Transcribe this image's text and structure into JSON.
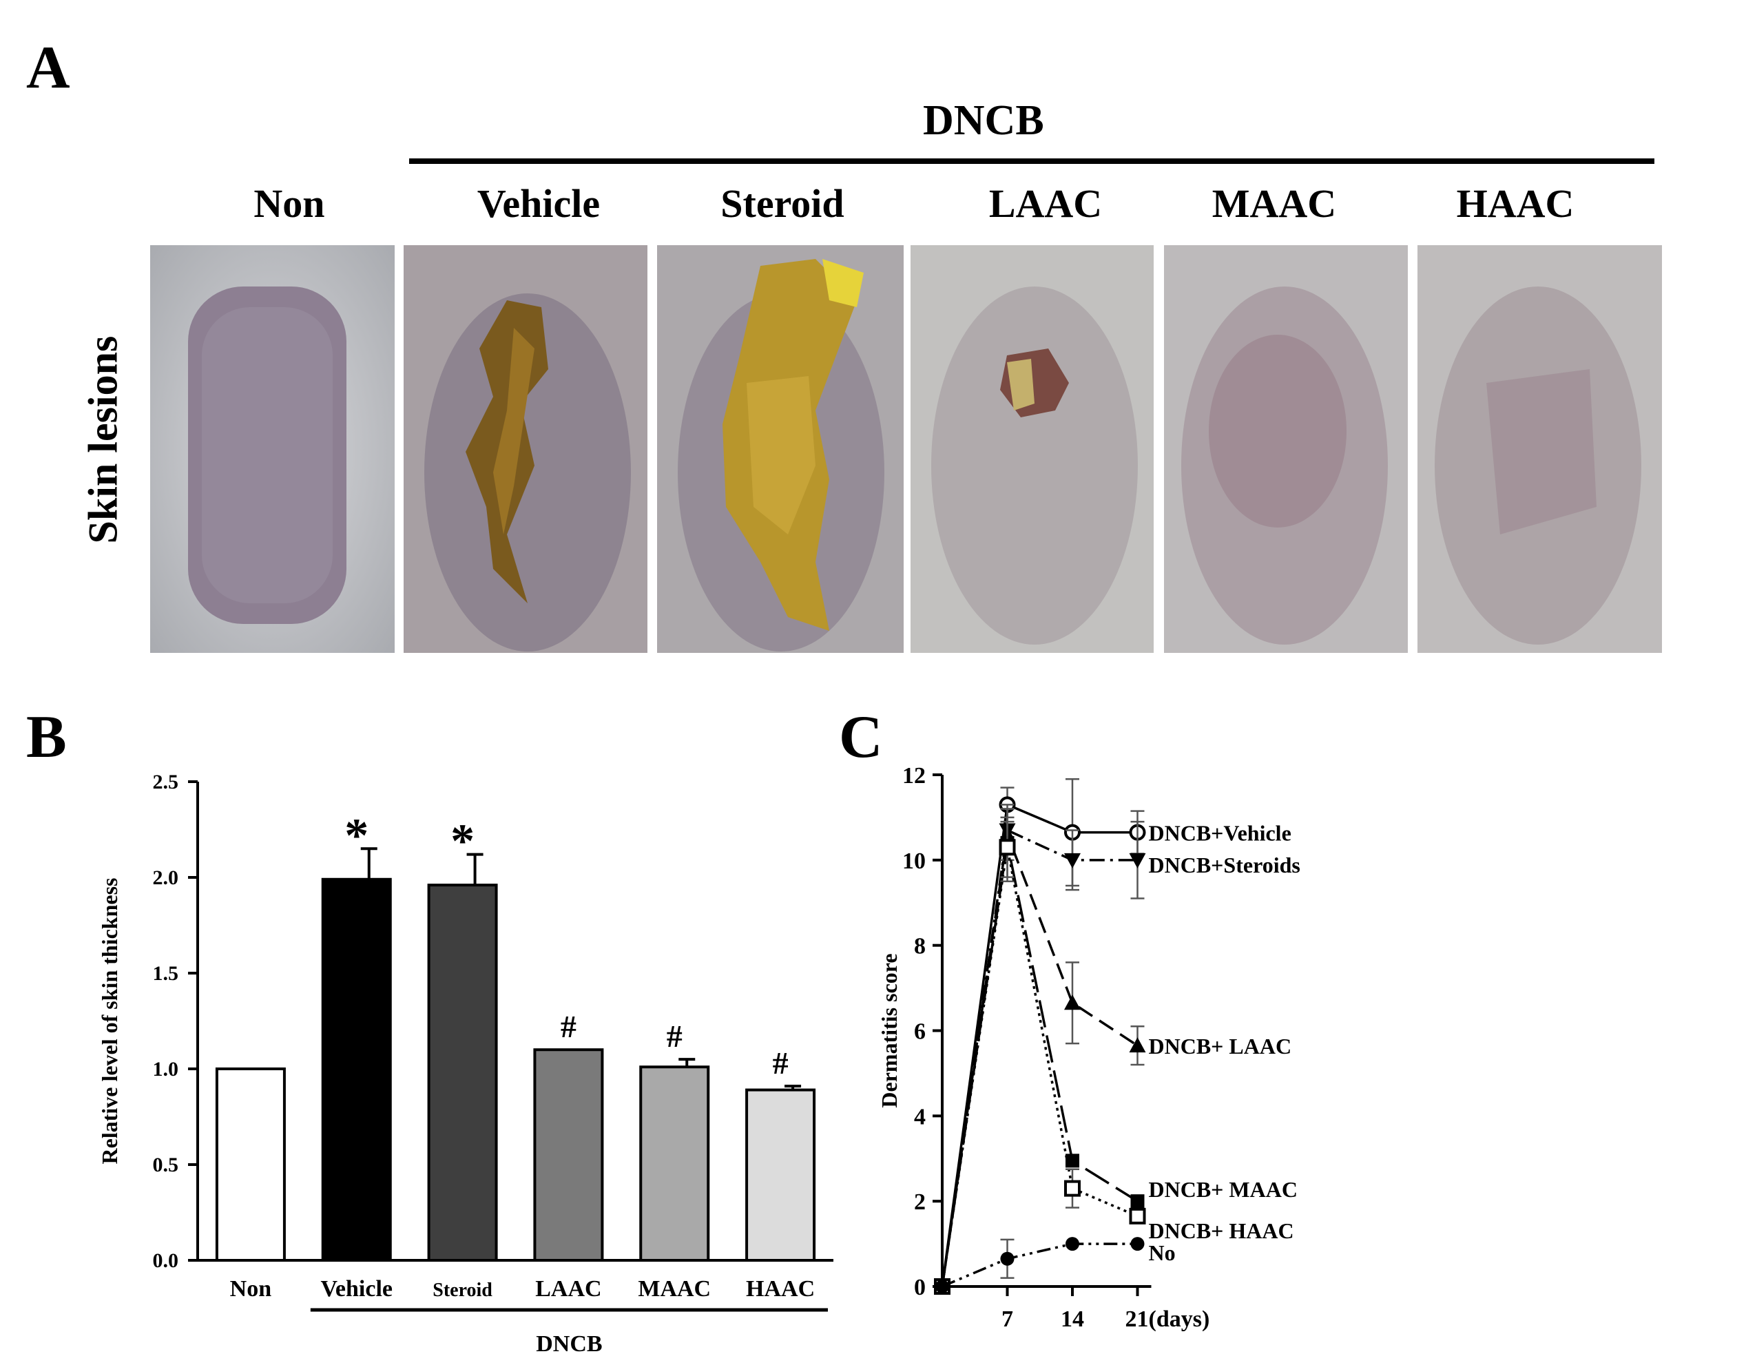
{
  "panel_a": {
    "letter": "A",
    "group_label": "DNCB",
    "row_label": "Skin lesions",
    "columns": [
      "Non",
      "Vehicle",
      "Steroid",
      "LAAC",
      "MAAC",
      "HAAC"
    ]
  },
  "panel_b": {
    "letter": "B",
    "group_label": "DNCB"
  },
  "panel_c": {
    "letter": "C"
  },
  "chart_data": [
    {
      "type": "bar",
      "ylabel": "Relative level of skin thickness",
      "categories": [
        "Non",
        "Vehicle",
        "Steroid",
        "LAAC",
        "MAAC",
        "HAAC"
      ],
      "values": [
        1.0,
        1.99,
        1.96,
        1.1,
        1.01,
        0.89
      ],
      "errors": [
        0.0,
        0.16,
        0.16,
        0.0,
        0.04,
        0.02
      ],
      "annotations": [
        "",
        "*",
        "*",
        "#",
        "#",
        "#"
      ],
      "colors": [
        "#ffffff",
        "#000000",
        "#3f3f3f",
        "#7a7a7a",
        "#a9a9a9",
        "#dcdcdc"
      ],
      "yticks": [
        "0.0",
        "0.5",
        "1.0",
        "1.5",
        "2.0",
        "2.5"
      ],
      "ylim": [
        0,
        2.5
      ]
    },
    {
      "type": "line",
      "ylabel": "Dermatitis score",
      "x": [
        0,
        7,
        14,
        21
      ],
      "xticks": [
        "7",
        "14",
        "21(days)"
      ],
      "yticks": [
        "0",
        "2",
        "4",
        "6",
        "8",
        "10",
        "12"
      ],
      "ylim": [
        0,
        12
      ],
      "series": [
        {
          "name": "DNCB+Vehicle",
          "values": [
            0,
            11.3,
            10.65,
            10.65
          ],
          "errors": [
            0,
            0.4,
            1.25,
            0.5
          ],
          "marker": "open-circle",
          "dash": "solid"
        },
        {
          "name": "DNCB+Steroids",
          "values": [
            0,
            10.7,
            10.0,
            10.0
          ],
          "errors": [
            0,
            0.5,
            0.7,
            0.9
          ],
          "marker": "down-triangle",
          "dash": "dashdot"
        },
        {
          "name": "DNCB+ LAAC",
          "values": [
            0,
            10.6,
            6.65,
            5.65
          ],
          "errors": [
            0,
            0.6,
            0.95,
            0.45
          ],
          "marker": "triangle",
          "dash": "dash"
        },
        {
          "name": "DNCB+ MAAC",
          "values": [
            0,
            10.4,
            2.95,
            2.0
          ],
          "errors": [
            0,
            0.9,
            0.0,
            0.0
          ],
          "marker": "square",
          "dash": "longdash"
        },
        {
          "name": "DNCB+ HAAC",
          "values": [
            0,
            10.3,
            2.3,
            1.65
          ],
          "errors": [
            0,
            0.7,
            0.45,
            0.0
          ],
          "marker": "open-square",
          "dash": "dot"
        },
        {
          "name": "No",
          "values": [
            0,
            0.65,
            1.0,
            1.0
          ],
          "errors": [
            0,
            0.45,
            0.0,
            0.0
          ],
          "marker": "circle",
          "dash": "dashdotdot"
        }
      ]
    }
  ]
}
